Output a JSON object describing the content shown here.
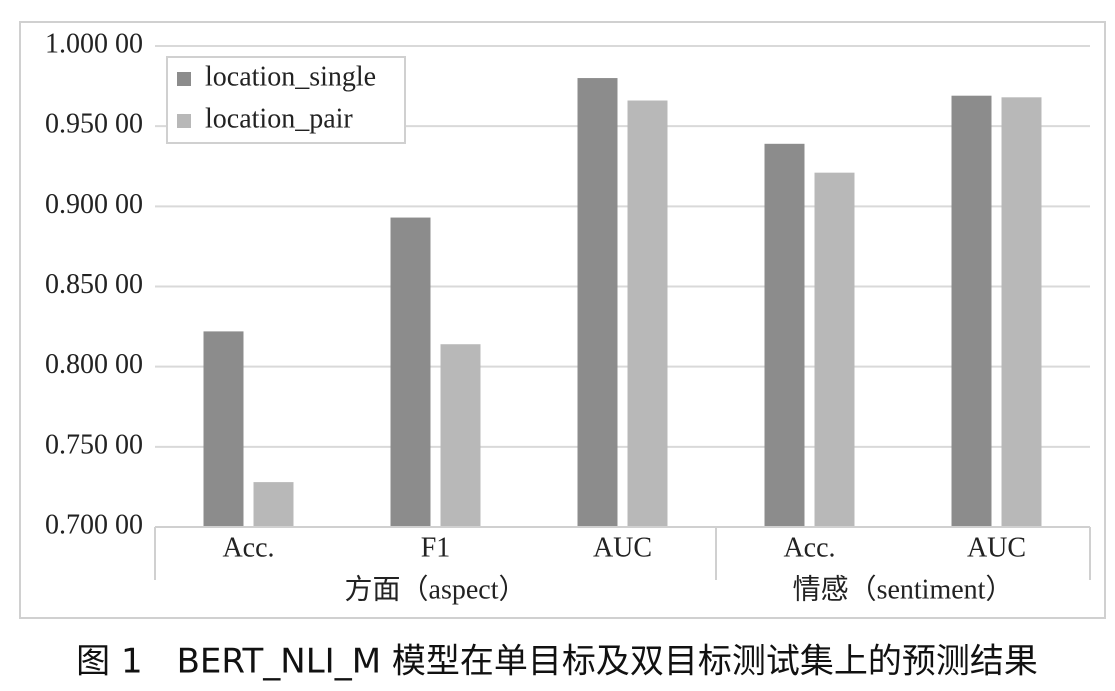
{
  "chart_data": {
    "type": "bar",
    "caption": "图 1　BERT_NLI_M 模型在单目标及双目标测试集上的预测结果",
    "groups": [
      {
        "label": "方面（aspect）",
        "categories": [
          "Acc.",
          "F1",
          "AUC"
        ]
      },
      {
        "label": "情感（sentiment）",
        "categories": [
          "Acc.",
          "AUC"
        ]
      }
    ],
    "series": [
      {
        "name": "location_single",
        "color": "#8c8c8c",
        "values": [
          0.822,
          0.893,
          0.98,
          0.939,
          0.969
        ]
      },
      {
        "name": "location_pair",
        "color": "#b8b8b8",
        "values": [
          0.728,
          0.814,
          0.966,
          0.921,
          0.968
        ]
      }
    ],
    "ylim": [
      0.7,
      1.0
    ],
    "yticks": [
      {
        "value": 0.7,
        "label": "0.700 00"
      },
      {
        "value": 0.75,
        "label": "0.750 00"
      },
      {
        "value": 0.8,
        "label": "0.800 00"
      },
      {
        "value": 0.85,
        "label": "0.850 00"
      },
      {
        "value": 0.9,
        "label": "0.900 00"
      },
      {
        "value": 0.95,
        "label": "0.950 00"
      },
      {
        "value": 1.0,
        "label": "1.000 00"
      }
    ],
    "grid": true,
    "legend": "top-left"
  }
}
